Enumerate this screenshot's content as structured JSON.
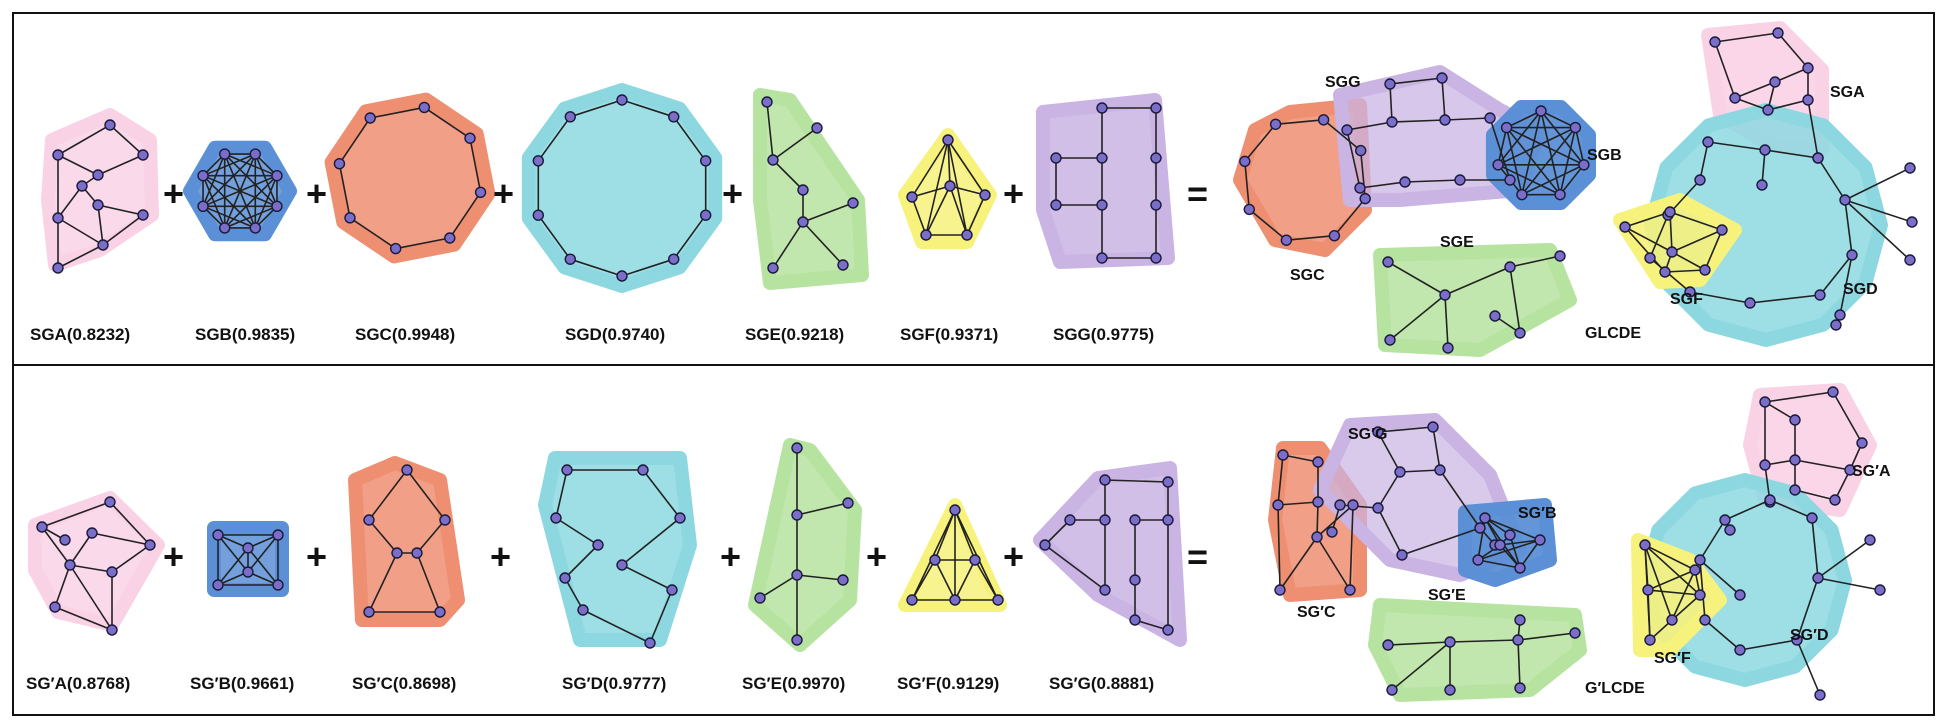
{
  "colors": {
    "pink": "#f9d2e6",
    "blue": "#5b8fd6",
    "orange": "#ee8f72",
    "cyan": "#8dd8e0",
    "green": "#b6e3a0",
    "yellow": "#f6f27c",
    "purple": "#c9b4e3",
    "node": "#7a6ec8"
  },
  "operators": {
    "plus": "+",
    "equals": "="
  },
  "top": {
    "labels": [
      "SGA(0.8232)",
      "SGB(0.9835)",
      "SGC(0.9948)",
      "SGD(0.9740)",
      "SGE(0.9218)",
      "SGF(0.9371)",
      "SGG(0.9775)"
    ],
    "composite": {
      "G": "SGG",
      "A": "SGA",
      "B": "SGB",
      "E": "SGE",
      "C": "SGC",
      "F": "SGF",
      "D": "SGD",
      "total": "GLCDE"
    }
  },
  "bottom": {
    "labels": [
      "SG′A(0.8768)",
      "SG′B(0.9661)",
      "SG′C(0.8698)",
      "SG′D(0.9777)",
      "SG′E(0.9970)",
      "SG′F(0.9129)",
      "SG′G(0.8881)"
    ],
    "composite": {
      "G": "SG′G",
      "A": "SG′A",
      "B": "SG′B",
      "E": "SG′E",
      "C": "SG′C",
      "F": "SG′F",
      "D": "SG′D",
      "total": "G′LCDE"
    }
  }
}
